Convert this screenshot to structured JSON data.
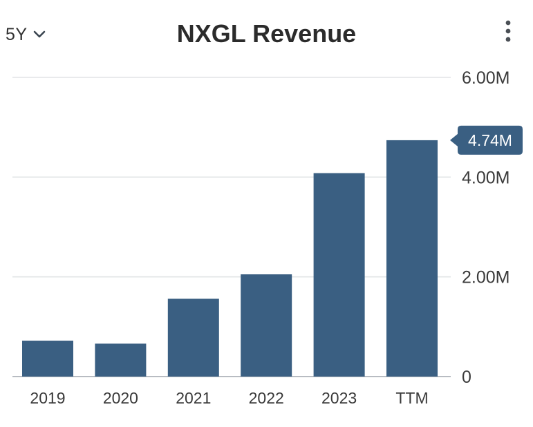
{
  "header": {
    "range_label": "5Y",
    "title": "NXGL Revenue"
  },
  "colors": {
    "bar": "#3a5f82",
    "grid": "#e2e4e6",
    "baseline": "#b8bcc2",
    "text": "#3a3a3a",
    "tag_bg": "#3a5f82"
  },
  "icons": {
    "range": "chevron-down-icon",
    "menu": "more-vertical-icon"
  },
  "chart_data": {
    "type": "bar",
    "title": "NXGL Revenue",
    "xlabel": "",
    "ylabel": "",
    "categories": [
      "2019",
      "2020",
      "2021",
      "2022",
      "2023",
      "TTM"
    ],
    "values": [
      720000,
      660000,
      1560000,
      2050000,
      4080000,
      4740000
    ],
    "ylim": [
      0,
      6000000
    ],
    "yticks": [
      0,
      2000000,
      4000000,
      6000000
    ],
    "ytick_labels": [
      "0",
      "2.00M",
      "4.00M",
      "6.00M"
    ],
    "grid": true,
    "y_axis_position": "right",
    "last_value_label": "4.74M"
  }
}
